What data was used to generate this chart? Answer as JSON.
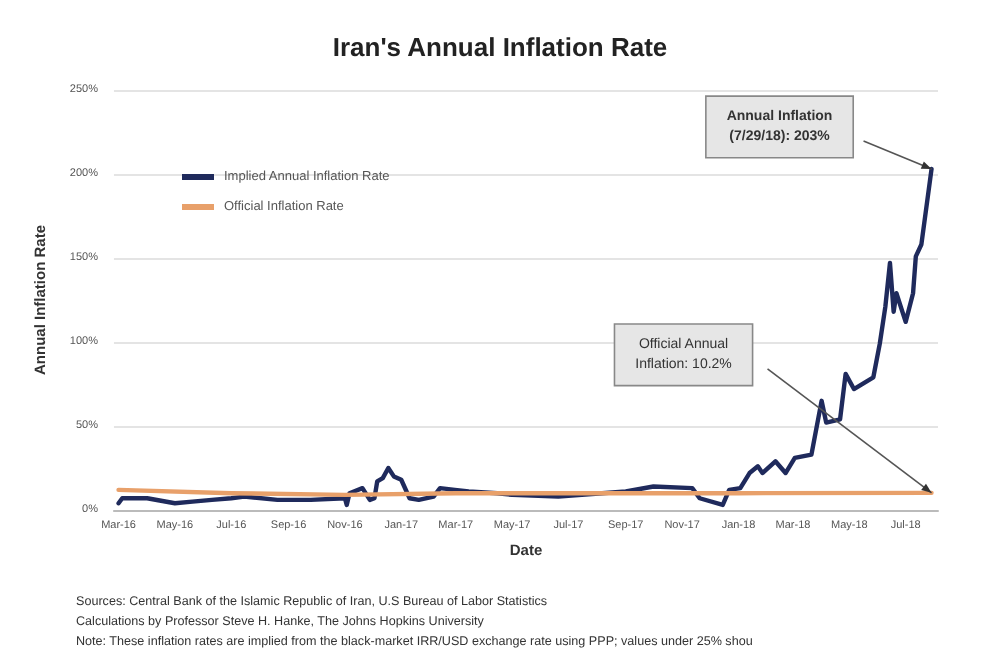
{
  "chart_data": {
    "type": "line",
    "title": "Iran's Annual Inflation Rate",
    "xlabel": "Date",
    "ylabel": "Annual Inflation Rate",
    "series": [
      {
        "name": "Implied Annual Inflation Rate",
        "color": "#1f2a5c",
        "x": [
          "2016-03-01",
          "2016-03-05",
          "2016-04-01",
          "2016-05-01",
          "2016-05-20",
          "2016-06-10",
          "2016-07-01",
          "2016-07-15",
          "2016-08-20",
          "2016-09-25",
          "2016-11-01",
          "2016-11-03",
          "2016-11-06",
          "2016-11-20",
          "2016-11-28",
          "2016-12-03",
          "2016-12-06",
          "2016-12-12",
          "2016-12-18",
          "2016-12-24",
          "2017-01-01",
          "2017-01-10",
          "2017-01-20",
          "2017-02-05",
          "2017-02-12",
          "2017-02-28",
          "2017-03-15",
          "2017-04-15",
          "2017-05-01",
          "2017-06-20",
          "2017-09-01",
          "2017-10-01",
          "2017-11-12",
          "2017-11-20",
          "2017-12-15",
          "2017-12-22",
          "2018-01-03",
          "2018-01-13",
          "2018-01-22",
          "2018-01-27",
          "2018-02-10",
          "2018-02-21",
          "2018-03-03",
          "2018-03-21",
          "2018-04-01",
          "2018-04-06",
          "2018-04-21",
          "2018-04-27",
          "2018-05-06",
          "2018-05-27",
          "2018-06-03",
          "2018-06-09",
          "2018-06-14",
          "2018-06-18",
          "2018-06-21",
          "2018-07-01",
          "2018-07-09",
          "2018-07-12",
          "2018-07-18",
          "2018-07-29"
        ],
        "values": [
          4,
          7,
          7,
          4,
          5,
          6,
          7,
          8,
          6,
          6,
          7,
          3,
          10,
          13,
          6,
          7,
          17,
          19,
          25,
          20,
          18,
          7,
          6,
          8,
          13,
          12,
          11,
          10,
          9,
          8,
          11,
          14,
          13,
          7,
          3,
          12,
          13,
          22,
          26,
          22,
          29,
          22,
          31,
          33,
          65,
          52,
          54,
          81,
          72,
          79,
          99,
          121,
          147,
          118,
          129,
          112,
          129,
          151,
          158,
          203
        ]
      },
      {
        "name": "Official Inflation Rate",
        "color": "#e8a06a",
        "x": [
          "2016-03-01",
          "2016-07-01",
          "2016-11-01",
          "2017-03-01",
          "2017-09-01",
          "2018-01-01",
          "2018-07-29"
        ],
        "values": [
          12,
          10,
          9,
          10,
          10,
          10,
          10.2
        ]
      }
    ],
    "xlim": [
      "2016-02-25",
      "2018-08-05"
    ],
    "xticks": [
      {
        "value": "2016-03-01",
        "label": "Mar-16"
      },
      {
        "value": "2016-05-01",
        "label": "May-16"
      },
      {
        "value": "2016-07-01",
        "label": "Jul-16"
      },
      {
        "value": "2016-09-01",
        "label": "Sep-16"
      },
      {
        "value": "2016-11-01",
        "label": "Nov-16"
      },
      {
        "value": "2017-01-01",
        "label": "Jan-17"
      },
      {
        "value": "2017-03-01",
        "label": "Mar-17"
      },
      {
        "value": "2017-05-01",
        "label": "May-17"
      },
      {
        "value": "2017-07-01",
        "label": "Jul-17"
      },
      {
        "value": "2017-09-01",
        "label": "Sep-17"
      },
      {
        "value": "2017-11-01",
        "label": "Nov-17"
      },
      {
        "value": "2018-01-01",
        "label": "Jan-18"
      },
      {
        "value": "2018-03-01",
        "label": "Mar-18"
      },
      {
        "value": "2018-05-01",
        "label": "May-18"
      },
      {
        "value": "2018-07-01",
        "label": "Jul-18"
      }
    ],
    "ylim": [
      0,
      250
    ],
    "yticks": [
      {
        "value": 0,
        "label": "0%"
      },
      {
        "value": 50,
        "label": "50%"
      },
      {
        "value": 100,
        "label": "100%"
      },
      {
        "value": 150,
        "label": "150%"
      },
      {
        "value": 200,
        "label": "200%"
      },
      {
        "value": 250,
        "label": "250%"
      }
    ],
    "grid": "y",
    "legend": "top left",
    "marker": "none",
    "line_style": "solid",
    "annotations": [
      "Annual Inflation\n(7/29/18): 203%",
      "Official Annual\nInflation: 10.2%",
      "Sources: Central Bank of the Islamic Republic of Iran, U.S Bureau of Labor Statistics",
      "Calculations by Professor Steve H. Hanke, The Johns Hopkins University",
      "Note: These inflation rates are implied from the black-market IRR/USD exchange rate using PPP; values under 25% shou"
    ]
  }
}
